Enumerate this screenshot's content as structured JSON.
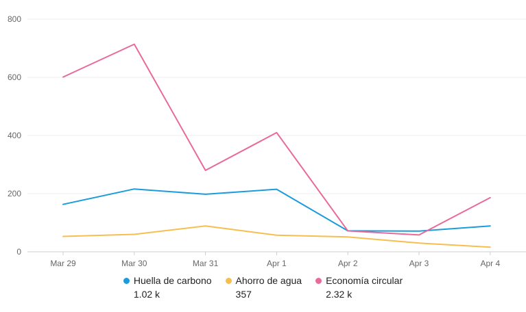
{
  "chart_data": {
    "type": "line",
    "categories": [
      "Mar 29",
      "Mar 30",
      "Mar 31",
      "Apr 1",
      "Apr 2",
      "Apr 3",
      "Apr 4"
    ],
    "yticks": [
      "0",
      "200",
      "400",
      "600",
      "800"
    ],
    "ylim": [
      0,
      800
    ],
    "grid": true,
    "legend_position": "bottom",
    "series": [
      {
        "name": "Huella de carbono",
        "total": "1.02 k",
        "color": "#1a9bdb",
        "values": [
          163,
          216,
          198,
          215,
          72,
          71,
          89
        ]
      },
      {
        "name": "Ahorro de agua",
        "total": "357",
        "color": "#f7be4e",
        "values": [
          53,
          60,
          89,
          57,
          51,
          30,
          16
        ]
      },
      {
        "name": "Economía circular",
        "total": "2.32 k",
        "color": "#e8699a",
        "values": [
          601,
          714,
          280,
          410,
          72,
          58,
          186
        ]
      }
    ]
  }
}
